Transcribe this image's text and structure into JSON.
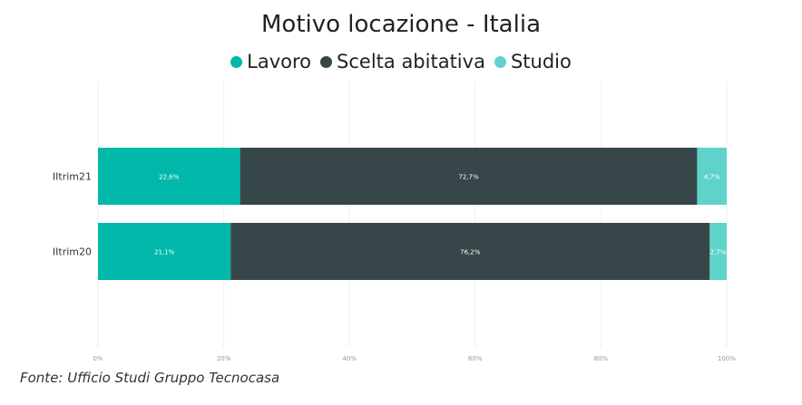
{
  "chart_data": {
    "type": "bar",
    "orientation": "horizontal",
    "stacked": true,
    "title": "Motivo locazione - Italia",
    "categories": [
      "IItrim21",
      "IItrim20"
    ],
    "series": [
      {
        "name": "Lavoro",
        "color": "#01b8aa",
        "values": [
          22.6,
          21.1
        ],
        "labels": [
          "22,6%",
          "21,1%"
        ]
      },
      {
        "name": "Scelta abitativa",
        "color": "#374649",
        "values": [
          72.7,
          76.2
        ],
        "labels": [
          "72,7%",
          "76,2%"
        ]
      },
      {
        "name": "Studio",
        "color": "#5fd3c9",
        "values": [
          4.7,
          2.7
        ],
        "labels": [
          "4,7%",
          "2,7%"
        ]
      }
    ],
    "xlim": [
      0,
      100
    ],
    "xticks": [
      0,
      20,
      40,
      60,
      80,
      100
    ],
    "xtick_labels": [
      "0%",
      "20%",
      "40%",
      "60%",
      "80%",
      "100%"
    ],
    "grid": true,
    "legend_position": "top-center"
  },
  "source": "Fonte: Ufficio Studi Gruppo Tecnocasa"
}
